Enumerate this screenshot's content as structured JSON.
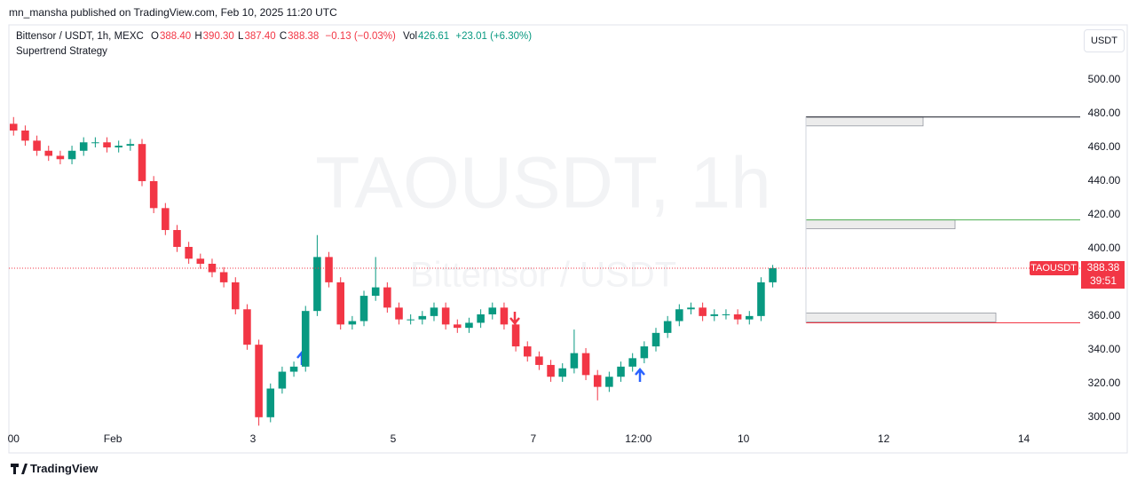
{
  "header": {
    "published": "mn_mansha published on TradingView.com, Feb 10, 2025 11:20 UTC"
  },
  "footer": {
    "brand": "TradingView"
  },
  "chart_data": {
    "type": "candlestick",
    "symbol_line": "Bittensor / USDT, 1h, MEXC",
    "legend": {
      "open_label": "O",
      "open": "388.40",
      "high_label": "H",
      "high": "390.30",
      "low_label": "L",
      "low": "387.40",
      "close_label": "C",
      "close": "388.38",
      "change": "−0.13 (−0.03%)",
      "volume_label": "Vol",
      "volume": "426.61",
      "volume_change": "+23.01 (+6.30%)"
    },
    "indicator": "Supertrend Strategy",
    "currency_button": "USDT",
    "watermark": "TAOUSDT, 1h",
    "watermark_sub": "Bittensor / USDT",
    "price_tag": {
      "symbol": "TAOUSDT",
      "price": 388.38,
      "countdown": "39:51"
    },
    "up_color": "#089981",
    "down_color": "#f23645",
    "x": [
      -34,
      -30,
      -26,
      -22,
      -18,
      -14,
      -10,
      -6,
      -2,
      2,
      6,
      10,
      14,
      18,
      22,
      26,
      30,
      34,
      38,
      42,
      46,
      50,
      54,
      58,
      62,
      66,
      70,
      74,
      78,
      82,
      86,
      90,
      94,
      98,
      102,
      106,
      110,
      114,
      118,
      122,
      126,
      130,
      134,
      138,
      142,
      146,
      150,
      154,
      158,
      162,
      166,
      170,
      174,
      178,
      182,
      186,
      190,
      194,
      198,
      202,
      206,
      210,
      214,
      218,
      222,
      226
    ],
    "open": [
      474,
      470,
      464,
      458,
      455,
      453,
      458,
      463,
      463,
      460,
      461,
      462,
      440,
      424,
      411,
      401,
      394,
      391,
      386,
      380,
      364,
      343,
      300,
      317,
      327,
      330,
      363,
      395,
      380,
      355,
      357,
      372,
      377,
      365,
      358,
      358,
      360,
      365,
      355,
      353,
      356,
      361,
      365,
      355,
      342,
      336,
      331,
      324,
      329,
      338,
      325,
      318,
      324,
      330,
      335,
      342,
      350,
      357,
      364,
      365,
      360,
      361,
      361,
      358,
      360,
      380
    ],
    "high": [
      478,
      473,
      467,
      461,
      458,
      461,
      466,
      466,
      466,
      464,
      465,
      465,
      443,
      427,
      414,
      404,
      397,
      394,
      389,
      383,
      367,
      346,
      320,
      330,
      333,
      366,
      408,
      398,
      383,
      360,
      375,
      395,
      380,
      368,
      361,
      363,
      368,
      368,
      358,
      359,
      364,
      368,
      368,
      358,
      345,
      339,
      334,
      332,
      352,
      341,
      328,
      327,
      333,
      338,
      345,
      353,
      360,
      367,
      368,
      368,
      364,
      364,
      364,
      363,
      383,
      390.3
    ],
    "low": [
      467,
      461,
      455,
      452,
      450,
      450,
      455,
      460,
      457,
      457,
      458,
      437,
      421,
      408,
      398,
      391,
      388,
      383,
      377,
      361,
      340,
      295,
      297,
      314,
      324,
      327,
      360,
      377,
      352,
      352,
      354,
      369,
      362,
      355,
      355,
      355,
      357,
      352,
      350,
      350,
      353,
      358,
      352,
      339,
      333,
      328,
      321,
      321,
      326,
      322,
      310,
      315,
      321,
      327,
      332,
      339,
      347,
      354,
      361,
      357,
      357,
      358,
      355,
      355,
      357,
      377
    ],
    "close": [
      470,
      464,
      458,
      455,
      453,
      458,
      463,
      463,
      460,
      461,
      462,
      440,
      424,
      411,
      401,
      394,
      391,
      386,
      380,
      364,
      343,
      300,
      317,
      327,
      330,
      363,
      395,
      380,
      355,
      357,
      372,
      377,
      365,
      358,
      358,
      360,
      365,
      355,
      353,
      356,
      361,
      365,
      355,
      342,
      336,
      331,
      324,
      329,
      338,
      325,
      318,
      324,
      330,
      335,
      342,
      350,
      357,
      364,
      365,
      360,
      361,
      361,
      358,
      360,
      380,
      388.38
    ],
    "xlim": [
      -35.6,
      331.3
    ],
    "xticks": [
      {
        "value": -34,
        "label": "00"
      },
      {
        "value": 0,
        "label": "Feb"
      },
      {
        "value": 48,
        "label": "3"
      },
      {
        "value": 96,
        "label": "5"
      },
      {
        "value": 144,
        "label": "7"
      },
      {
        "value": 180,
        "label": "12:00"
      },
      {
        "value": 216,
        "label": "10"
      },
      {
        "value": 264,
        "label": "12"
      },
      {
        "value": 312,
        "label": "14"
      }
    ],
    "ylim": [
      292,
      531.6
    ],
    "yticks": [
      {
        "value": 300,
        "label": "300.00"
      },
      {
        "value": 320,
        "label": "320.00"
      },
      {
        "value": 340,
        "label": "340.00"
      },
      {
        "value": 360,
        "label": "360.00"
      },
      {
        "value": 380,
        "label": "380.00"
      },
      {
        "value": 400,
        "label": "400.00"
      },
      {
        "value": 420,
        "label": "420.00"
      },
      {
        "value": 440,
        "label": "440.00"
      },
      {
        "value": 460,
        "label": "460.00"
      },
      {
        "value": 480,
        "label": "480.00"
      },
      {
        "value": 500,
        "label": "500.00"
      }
    ],
    "levels": [
      {
        "value": 478,
        "color": "#131722"
      },
      {
        "value": 417,
        "color": "#4caf50"
      },
      {
        "value": 356,
        "color": "#f23645"
      }
    ]
  }
}
